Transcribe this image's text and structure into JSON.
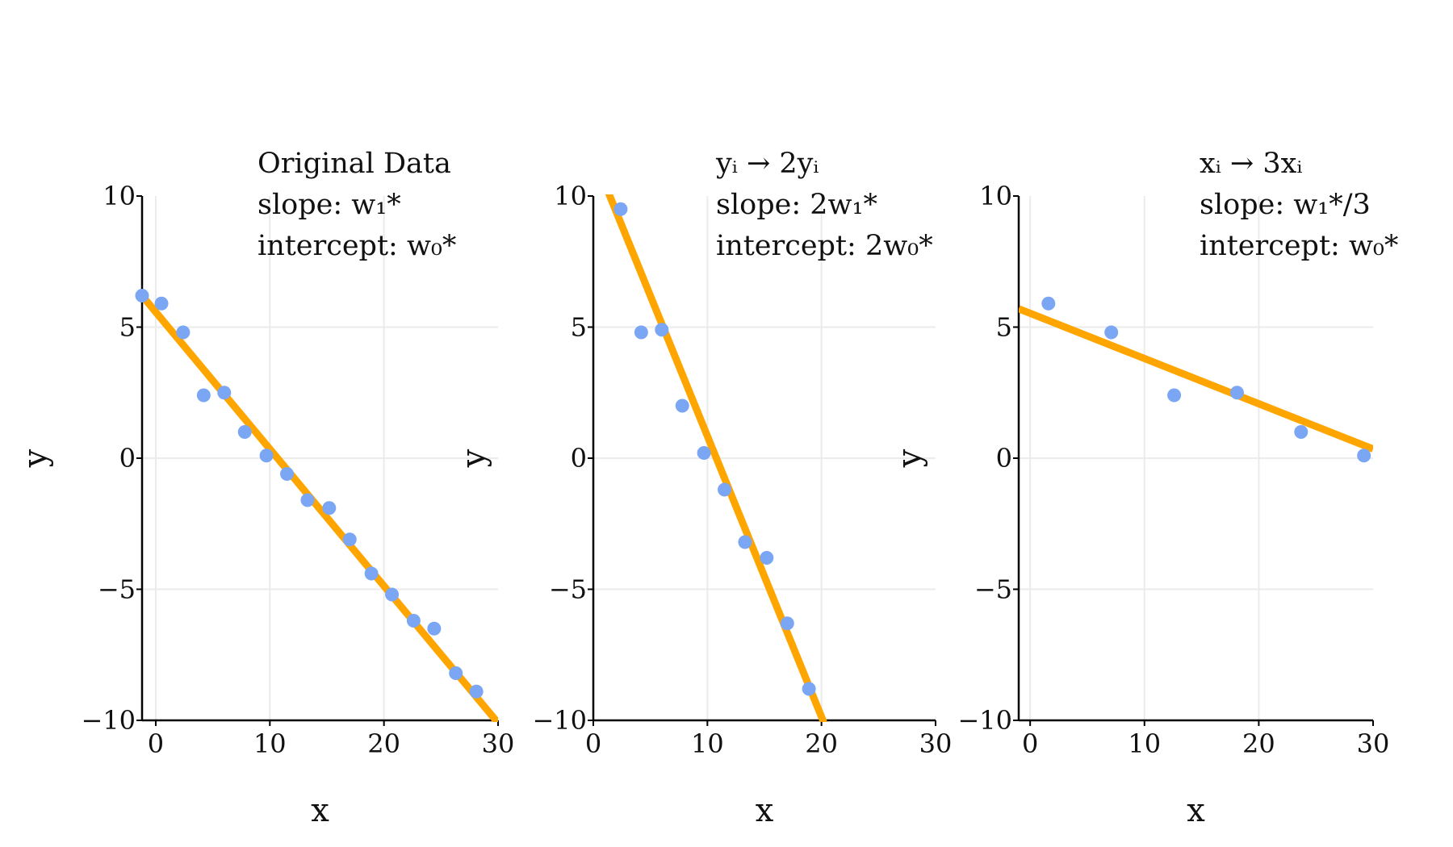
{
  "chart_data": [
    {
      "type": "scatter",
      "title_lines": [
        "Original Data",
        "slope: w₁*",
        "intercept: w₀*"
      ],
      "xlabel": "x",
      "ylabel": "y",
      "xlim": [
        -1.2,
        30
      ],
      "ylim": [
        -10,
        10
      ],
      "xticks": [
        0,
        10,
        20,
        30
      ],
      "yticks": [
        -10,
        -5,
        0,
        5,
        10
      ],
      "xtick_labels": [
        "0",
        "10",
        "20",
        "30"
      ],
      "ytick_labels": [
        "−10",
        "−5",
        "0",
        "5",
        "10"
      ],
      "grid": true,
      "series": [
        {
          "kind": "points",
          "color": "#7aa6f4",
          "x": [
            -1.2,
            0.5,
            2.4,
            4.2,
            6.0,
            7.8,
            9.7,
            11.5,
            13.3,
            15.2,
            17.0,
            18.9,
            20.7,
            22.6,
            24.4,
            26.3,
            28.1
          ],
          "y": [
            6.2,
            5.9,
            4.8,
            2.4,
            2.5,
            1.0,
            0.1,
            -0.6,
            -1.6,
            -1.9,
            -3.1,
            -4.4,
            -5.2,
            -6.2,
            -6.5,
            -8.2,
            -8.9
          ]
        },
        {
          "kind": "line",
          "color": "#ffa500",
          "x": [
            -1.2,
            30
          ],
          "y": [
            6.2,
            -10.1
          ]
        }
      ]
    },
    {
      "type": "scatter",
      "title_lines": [
        "yᵢ → 2yᵢ",
        "slope: 2w₁*",
        "intercept: 2w₀*"
      ],
      "xlabel": "x",
      "ylabel": "y",
      "xlim": [
        0,
        30
      ],
      "ylim": [
        -10,
        10
      ],
      "xticks": [
        0,
        10,
        20,
        30
      ],
      "yticks": [
        -10,
        -5,
        0,
        5,
        10
      ],
      "xtick_labels": [
        "0",
        "10",
        "20",
        "30"
      ],
      "ytick_labels": [
        "−10",
        "−5",
        "0",
        "5",
        "10"
      ],
      "grid": true,
      "series": [
        {
          "kind": "points",
          "color": "#7aa6f4",
          "x": [
            2.4,
            4.2,
            6.0,
            7.8,
            9.7,
            11.5,
            13.3,
            15.2,
            17.0,
            18.9
          ],
          "y": [
            9.5,
            4.8,
            4.9,
            2.0,
            0.2,
            -1.2,
            -3.2,
            -3.8,
            -6.3,
            -8.8
          ]
        },
        {
          "kind": "line",
          "color": "#ffa500",
          "x": [
            0.7,
            20.5
          ],
          "y": [
            10.8,
            -10.4
          ]
        }
      ]
    },
    {
      "type": "scatter",
      "title_lines": [
        "xᵢ → 3xᵢ",
        "slope: w₁*/3",
        "intercept: w₀*"
      ],
      "xlabel": "x",
      "ylabel": "y",
      "xlim": [
        -1,
        30
      ],
      "ylim": [
        -10,
        10
      ],
      "xticks": [
        0,
        10,
        20,
        30
      ],
      "yticks": [
        -10,
        -5,
        0,
        5,
        10
      ],
      "xtick_labels": [
        "0",
        "10",
        "20",
        "30"
      ],
      "ytick_labels": [
        "−10",
        "−5",
        "0",
        "5",
        "10"
      ],
      "grid": true,
      "series": [
        {
          "kind": "points",
          "color": "#7aa6f4",
          "x": [
            1.6,
            7.1,
            12.6,
            18.1,
            23.7,
            29.2
          ],
          "y": [
            5.9,
            4.8,
            2.4,
            2.5,
            1.0,
            0.1
          ]
        },
        {
          "kind": "line",
          "color": "#ffa500",
          "x": [
            -1,
            30
          ],
          "y": [
            5.7,
            0.35
          ]
        }
      ]
    }
  ]
}
